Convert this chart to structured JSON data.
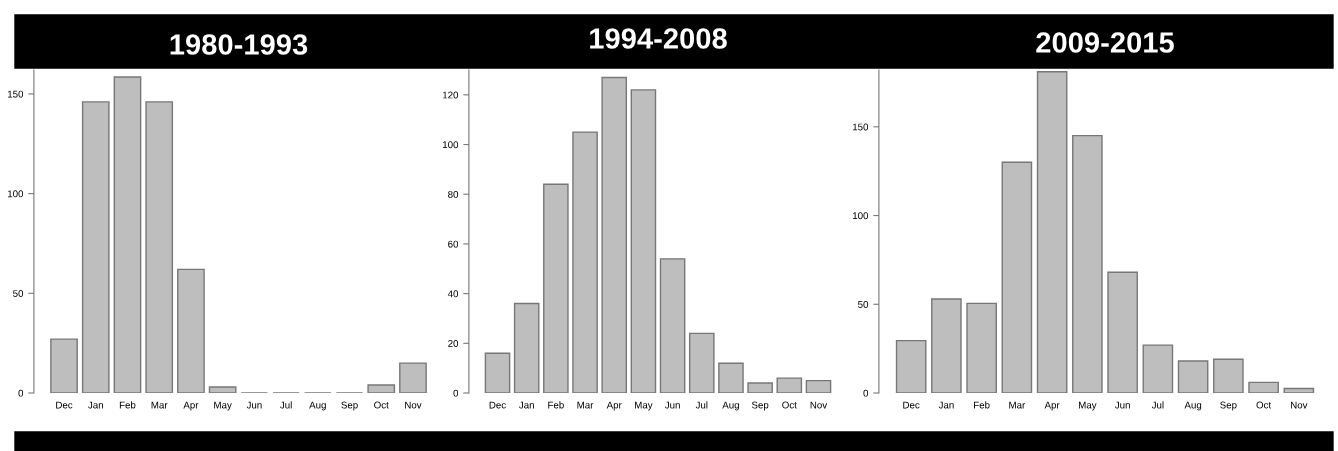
{
  "chart_data": [
    {
      "type": "bar",
      "title": "1980-1993",
      "categories": [
        "Dec",
        "Jan",
        "Feb",
        "Mar",
        "Apr",
        "May",
        "Jun",
        "Jul",
        "Aug",
        "Sep",
        "Oct",
        "Nov"
      ],
      "values": [
        27,
        146,
        158.5,
        146,
        62,
        3,
        0,
        0,
        0,
        0,
        4,
        15
      ],
      "color": "#bebebe",
      "ylim": [
        0,
        162
      ],
      "yticks": [
        0,
        50,
        100,
        150
      ]
    },
    {
      "type": "bar",
      "title": "1994-2008",
      "categories": [
        "Dec",
        "Jan",
        "Feb",
        "Mar",
        "Apr",
        "May",
        "Jun",
        "Jul",
        "Aug",
        "Sep",
        "Oct",
        "Nov"
      ],
      "values": [
        16,
        36,
        84,
        105,
        127,
        122,
        54,
        24,
        12,
        4,
        6,
        5
      ],
      "color": "#bebebe",
      "ylim": [
        0,
        130
      ],
      "yticks": [
        0,
        20,
        40,
        60,
        80,
        100,
        120
      ]
    },
    {
      "type": "bar",
      "title": "2009-2015",
      "categories": [
        "Dec",
        "Jan",
        "Feb",
        "Mar",
        "Apr",
        "May",
        "Jun",
        "Jul",
        "Aug",
        "Sep",
        "Oct",
        "Nov"
      ],
      "values": [
        29.5,
        53,
        50.5,
        130,
        181,
        145,
        68,
        27,
        18,
        19,
        6,
        2.5
      ],
      "color": "#bebebe",
      "ylim": [
        0,
        182
      ],
      "yticks": [
        0,
        50,
        100,
        150
      ]
    }
  ]
}
